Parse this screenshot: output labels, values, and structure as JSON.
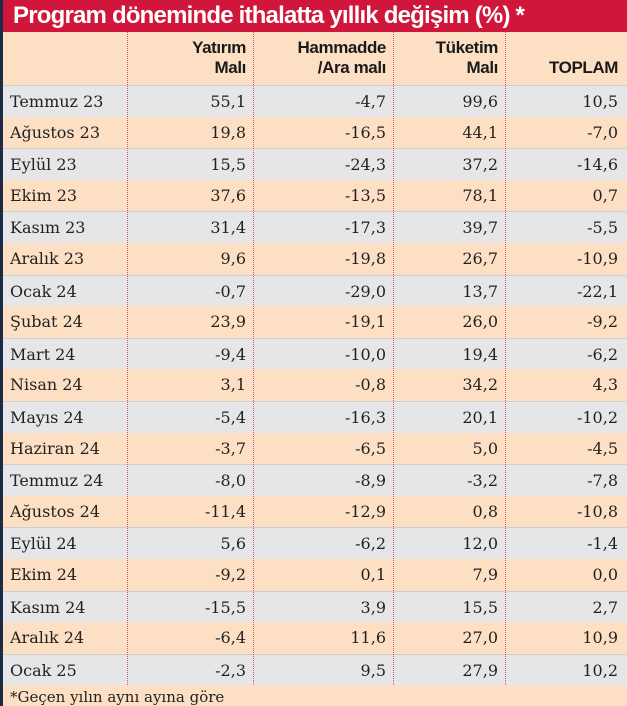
{
  "chart_data": {
    "type": "table",
    "title": "Program döneminde ithalatta yıllık değişim (%) *",
    "columns": [
      {
        "line1": "Yatırım",
        "line2": "Malı"
      },
      {
        "line1": "Hammadde",
        "line2": "/Ara malı"
      },
      {
        "line1": "Tüketim",
        "line2": "Malı"
      },
      {
        "line1": "",
        "line2": "TOPLAM"
      }
    ],
    "rows": [
      {
        "label": "Temmuz 23",
        "values": [
          "55,1",
          "-4,7",
          "99,6",
          "10,5"
        ]
      },
      {
        "label": "Ağustos 23",
        "values": [
          "19,8",
          "-16,5",
          "44,1",
          "-7,0"
        ]
      },
      {
        "label": "Eylül 23",
        "values": [
          "15,5",
          "-24,3",
          "37,2",
          "-14,6"
        ]
      },
      {
        "label": "Ekim 23",
        "values": [
          "37,6",
          "-13,5",
          "78,1",
          "0,7"
        ]
      },
      {
        "label": "Kasım 23",
        "values": [
          "31,4",
          "-17,3",
          "39,7",
          "-5,5"
        ]
      },
      {
        "label": "Aralık 23",
        "values": [
          "9,6",
          "-19,8",
          "26,7",
          "-10,9"
        ]
      },
      {
        "label": "Ocak 24",
        "values": [
          "-0,7",
          "-29,0",
          "13,7",
          "-22,1"
        ]
      },
      {
        "label": "Şubat 24",
        "values": [
          "23,9",
          "-19,1",
          "26,0",
          "-9,2"
        ]
      },
      {
        "label": "Mart 24",
        "values": [
          "-9,4",
          "-10,0",
          "19,4",
          "-6,2"
        ]
      },
      {
        "label": "Nisan 24",
        "values": [
          "3,1",
          "-0,8",
          "34,2",
          "4,3"
        ]
      },
      {
        "label": "Mayıs 24",
        "values": [
          "-5,4",
          "-16,3",
          "20,1",
          "-10,2"
        ]
      },
      {
        "label": "Haziran 24",
        "values": [
          "-3,7",
          "-6,5",
          "5,0",
          "-4,5"
        ]
      },
      {
        "label": "Temmuz 24",
        "values": [
          "-8,0",
          "-8,9",
          "-3,2",
          "-7,8"
        ]
      },
      {
        "label": "Ağustos 24",
        "values": [
          "-11,4",
          "-12,9",
          "0,8",
          "-10,8"
        ]
      },
      {
        "label": "Eylül 24",
        "values": [
          "5,6",
          "-6,2",
          "12,0",
          "-1,4"
        ]
      },
      {
        "label": "Ekim 24",
        "values": [
          "-9,2",
          "0,1",
          "7,9",
          "0,0"
        ]
      },
      {
        "label": "Kasım 24",
        "values": [
          "-15,5",
          "3,9",
          "15,5",
          "2,7"
        ]
      },
      {
        "label": "Aralık 24",
        "values": [
          "-6,4",
          "11,6",
          "27,0",
          "10,9"
        ]
      },
      {
        "label": "Ocak 25",
        "values": [
          "-2,3",
          "9,5",
          "27,9",
          "10,2"
        ]
      }
    ],
    "footnote": "*Geçen yılın aynı ayına göre",
    "colors": {
      "title_bg": "#d0163a",
      "row_gray": "#e6e6e8",
      "row_peach": "#fde0c4",
      "divider": "#e05070"
    }
  }
}
